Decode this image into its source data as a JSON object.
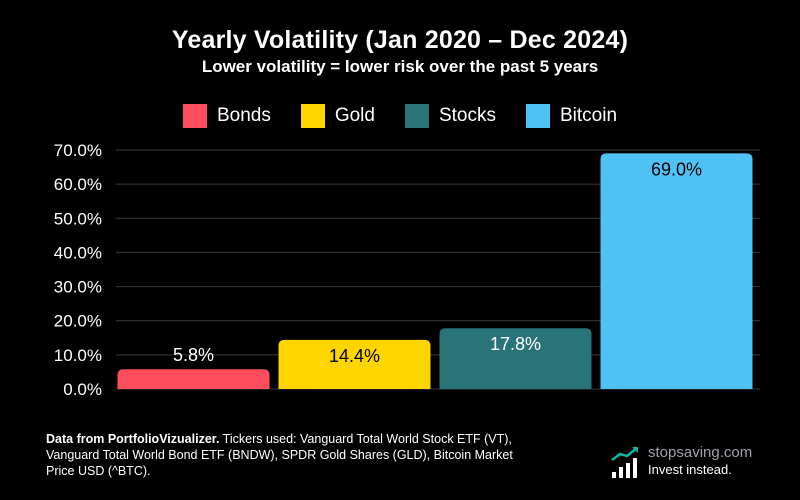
{
  "chart_data": {
    "type": "bar",
    "title": "Yearly Volatility (Jan 2020 – Dec 2024)",
    "subtitle": "Lower volatility = lower risk over the past 5 years",
    "categories": [
      "Bonds",
      "Gold",
      "Stocks",
      "Bitcoin"
    ],
    "values": [
      5.8,
      14.4,
      17.8,
      69.0
    ],
    "value_labels": [
      "5.8%",
      "14.4%",
      "17.8%",
      "69.0%"
    ],
    "colors": [
      "#ff4d5e",
      "#ffd500",
      "#287478",
      "#4fc1f5"
    ],
    "label_colors": [
      "#ffffff",
      "#000000",
      "#ffffff",
      "#000000"
    ],
    "ylim": [
      0,
      70
    ],
    "yticks": [
      0,
      10,
      20,
      30,
      40,
      50,
      60,
      70
    ],
    "ytick_labels": [
      "0.0%",
      "10.0%",
      "20.0%",
      "30.0%",
      "40.0%",
      "50.0%",
      "60.0%",
      "70.0%"
    ],
    "xlabel": "",
    "ylabel": "",
    "grid": true,
    "legend": "top-center"
  },
  "footer": {
    "source_bold": "Data from PortfolioVizualizer.",
    "source_text": " Tickers used: Vanguard Total World Stock ETF (VT), Vanguard Total World Bond ETF (BNDW), SPDR Gold Shares (GLD), Bitcoin Market Price USD (^BTC)."
  },
  "brand": {
    "name": "stopsaving.com",
    "tagline": "Invest instead."
  }
}
